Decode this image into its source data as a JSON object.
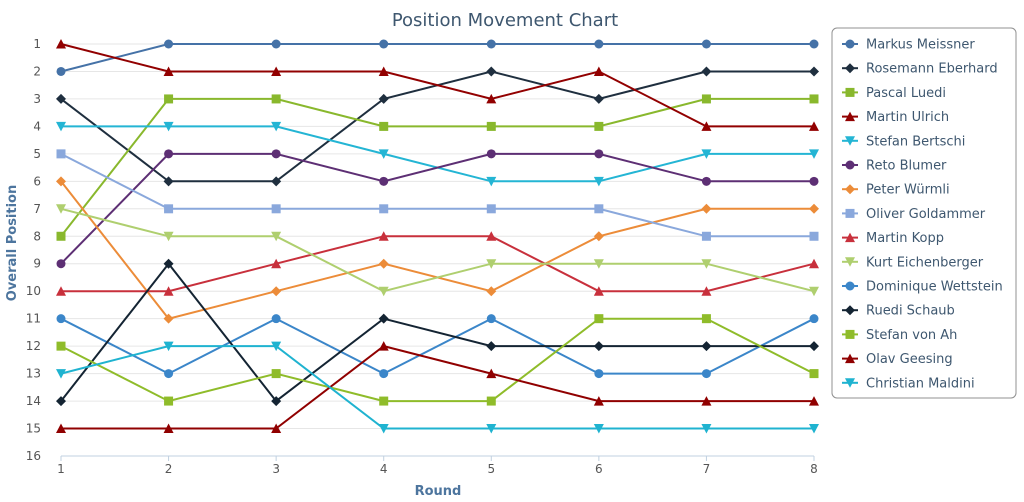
{
  "chart_data": {
    "type": "line",
    "title": "Position Movement Chart",
    "xlabel": "Round",
    "ylabel": "Overall Position",
    "x": [
      1,
      2,
      3,
      4,
      5,
      6,
      7,
      8
    ],
    "xlim": [
      1,
      8
    ],
    "ylim": [
      1,
      16
    ],
    "y_reversed": true,
    "y_ticks": [
      1,
      2,
      3,
      4,
      5,
      6,
      7,
      8,
      9,
      10,
      11,
      12,
      13,
      14,
      15,
      16
    ],
    "grid": true,
    "legend_position": "right",
    "series": [
      {
        "name": "Markus Meissner",
        "color": "#4572A7",
        "marker": "circle",
        "values": [
          2,
          1,
          1,
          1,
          1,
          1,
          1,
          1
        ]
      },
      {
        "name": "Rosemann Eberhard",
        "color": "#1F2F3F",
        "marker": "diamond",
        "values": [
          3,
          6,
          6,
          3,
          2,
          3,
          2,
          2
        ]
      },
      {
        "name": "Pascal Luedi",
        "color": "#89B82D",
        "marker": "square",
        "values": [
          8,
          3,
          3,
          4,
          4,
          4,
          3,
          3
        ]
      },
      {
        "name": "Martin Ulrich",
        "color": "#920000",
        "marker": "triangle",
        "values": [
          1,
          2,
          2,
          2,
          3,
          2,
          4,
          4
        ]
      },
      {
        "name": "Stefan Bertschi",
        "color": "#24B5D4",
        "marker": "triangle-down",
        "values": [
          4,
          4,
          4,
          5,
          6,
          6,
          5,
          5
        ]
      },
      {
        "name": "Reto Blumer",
        "color": "#5D2F74",
        "marker": "circle",
        "values": [
          9,
          5,
          5,
          6,
          5,
          5,
          6,
          6
        ]
      },
      {
        "name": "Peter Würmli",
        "color": "#EC8C39",
        "marker": "diamond",
        "values": [
          6,
          11,
          10,
          9,
          10,
          8,
          7,
          7
        ]
      },
      {
        "name": "Oliver Goldammer",
        "color": "#8AA8DC",
        "marker": "square",
        "values": [
          5,
          7,
          7,
          7,
          7,
          7,
          8,
          8
        ]
      },
      {
        "name": "Martin Kopp",
        "color": "#C8303C",
        "marker": "triangle",
        "values": [
          10,
          10,
          9,
          8,
          8,
          10,
          10,
          9
        ]
      },
      {
        "name": "Kurt Eichenberger",
        "color": "#AFCF6F",
        "marker": "triangle-down",
        "values": [
          7,
          8,
          8,
          10,
          9,
          9,
          9,
          10
        ]
      },
      {
        "name": "Dominique Wettstein",
        "color": "#3B86C9",
        "marker": "circle",
        "values": [
          11,
          13,
          11,
          13,
          11,
          13,
          13,
          11
        ]
      },
      {
        "name": "Ruedi Schaub",
        "color": "#142433",
        "marker": "diamond",
        "values": [
          14,
          9,
          14,
          11,
          12,
          12,
          12,
          12
        ]
      },
      {
        "name": "Stefan von Ah",
        "color": "#8FBC2A",
        "marker": "square",
        "values": [
          12,
          14,
          13,
          14,
          14,
          11,
          11,
          13
        ]
      },
      {
        "name": "Olav Geesing",
        "color": "#900000",
        "marker": "triangle",
        "values": [
          15,
          15,
          15,
          12,
          13,
          14,
          14,
          14
        ]
      },
      {
        "name": "Christian Maldini",
        "color": "#1FB3D0",
        "marker": "triangle-down",
        "values": [
          13,
          12,
          12,
          15,
          15,
          15,
          15,
          15
        ]
      }
    ]
  }
}
